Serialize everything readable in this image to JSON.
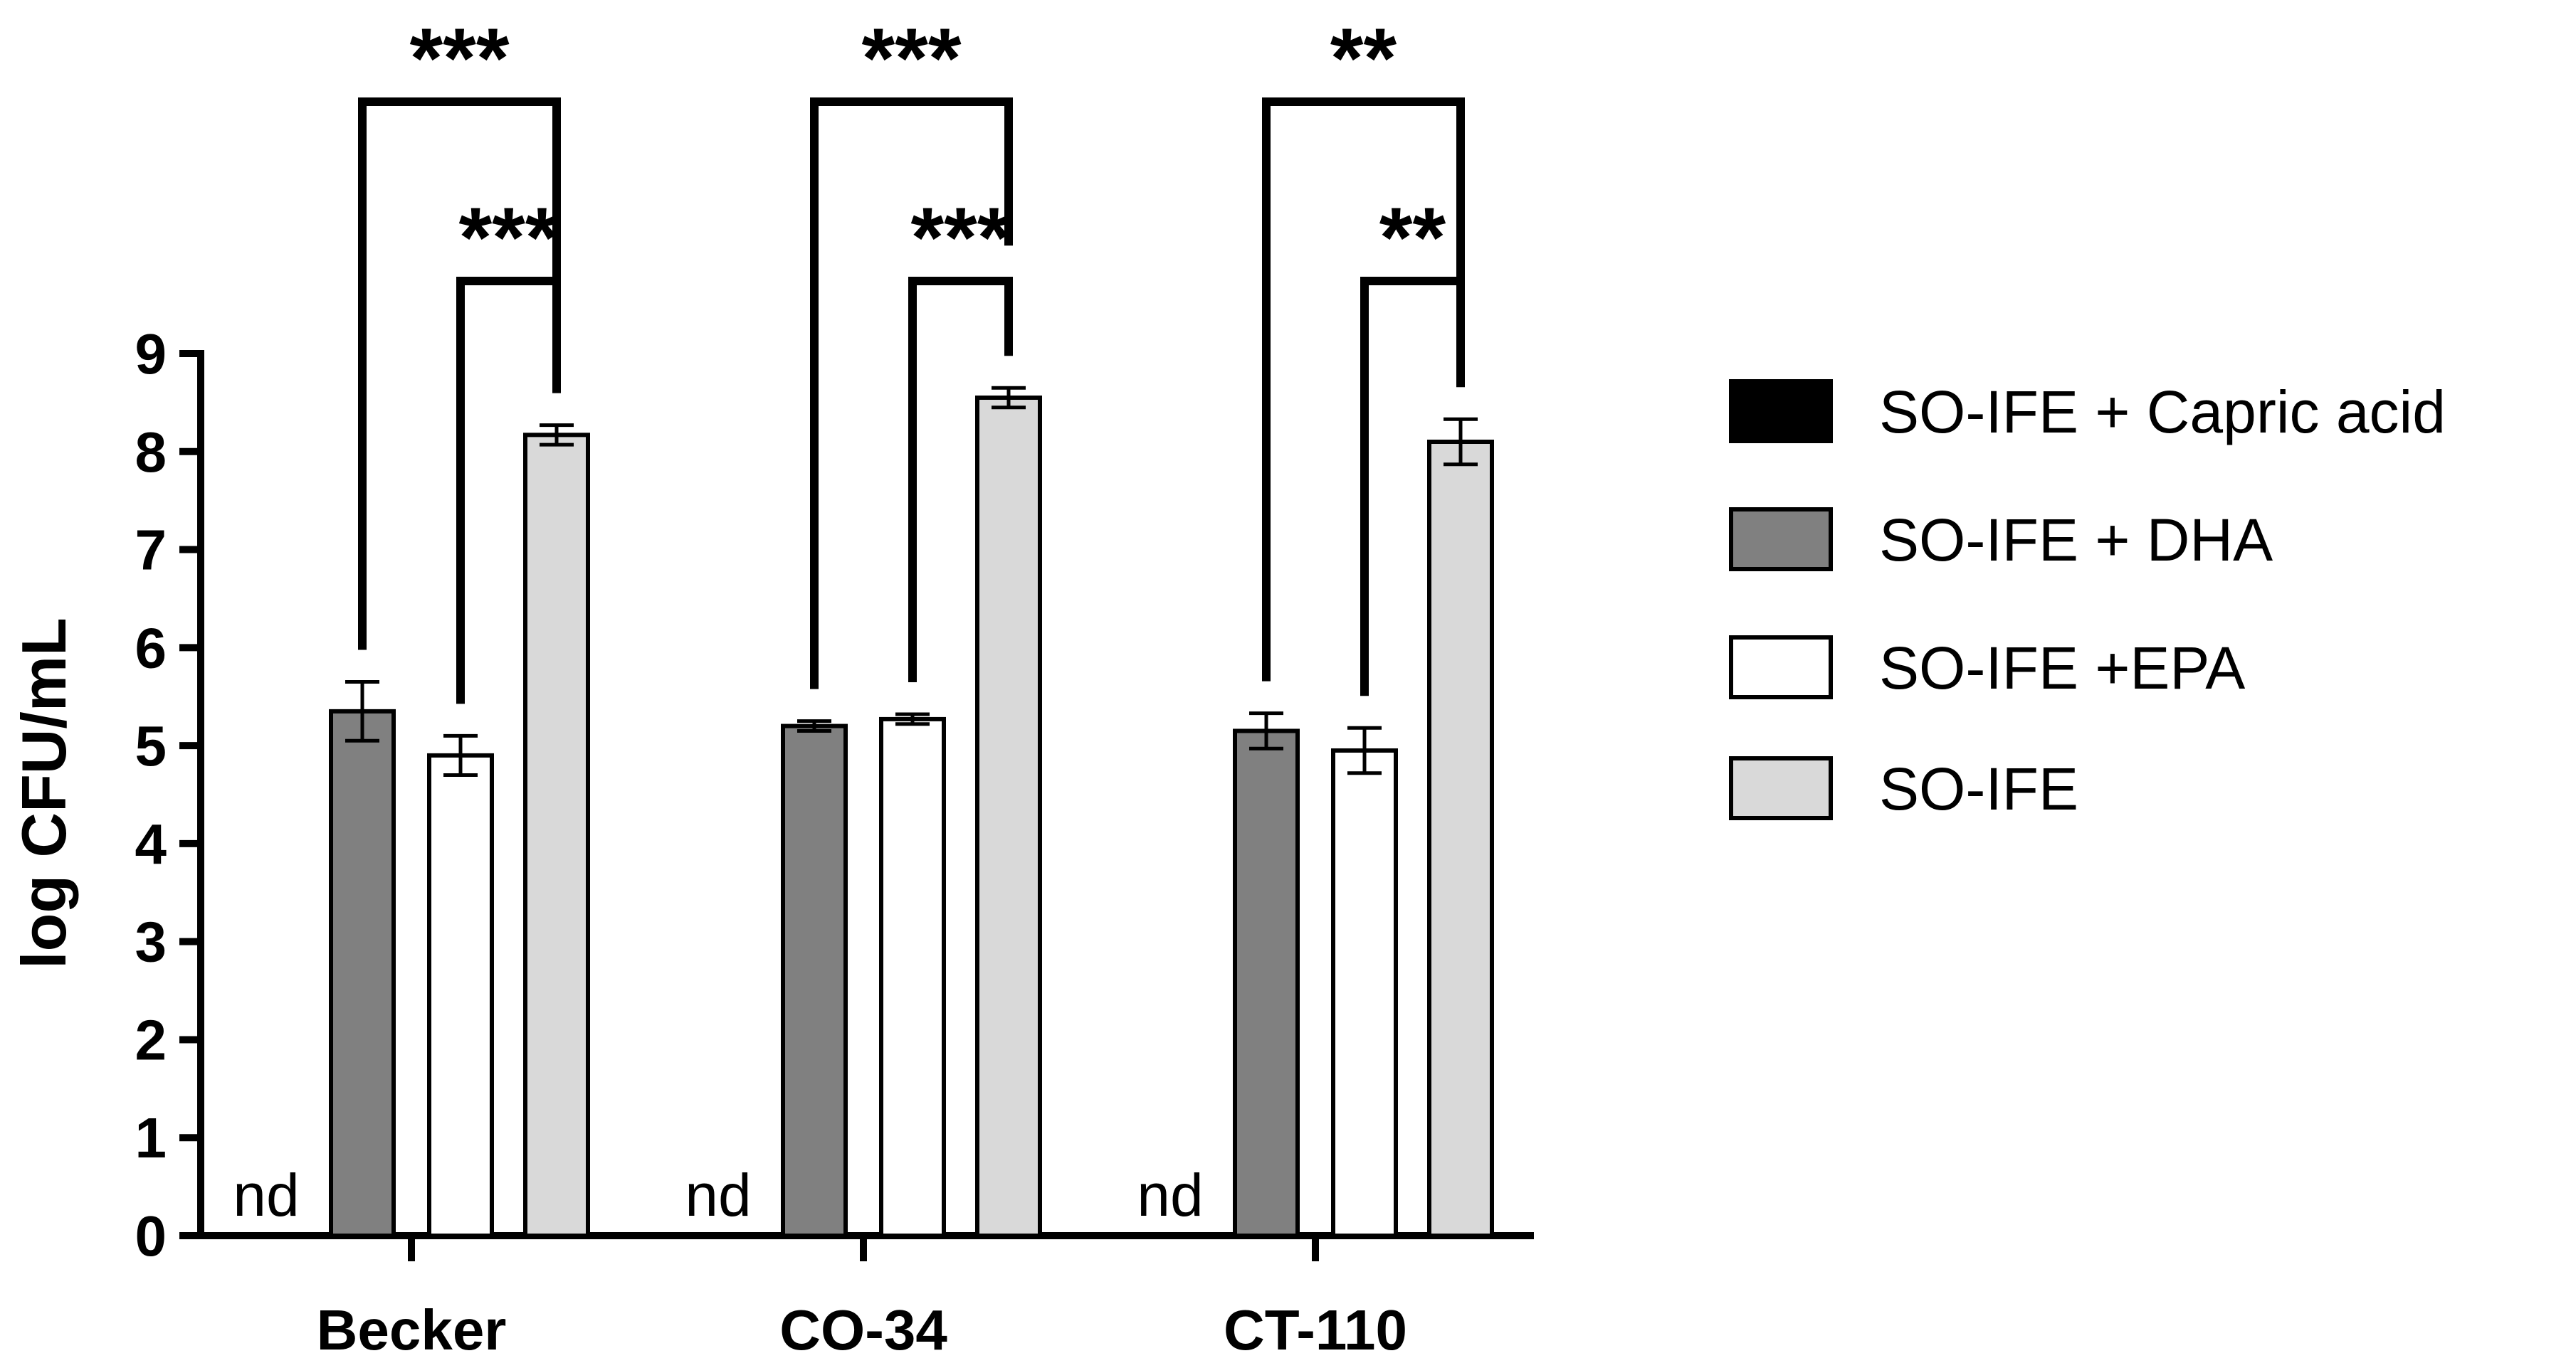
{
  "chart_data": {
    "type": "bar",
    "title": "",
    "xlabel": "",
    "ylabel": "log CFU/mL",
    "ylim": [
      0,
      9
    ],
    "yticks": [
      "0",
      "1",
      "2",
      "3",
      "4",
      "5",
      "6",
      "7",
      "8",
      "9"
    ],
    "categories": [
      "Becker",
      "CO-34",
      "CT-110"
    ],
    "grid": false,
    "legend_position": "right",
    "series": [
      {
        "name": "SO-IFE + Capric acid",
        "color": "#000000",
        "values": [
          null,
          null,
          null
        ],
        "errors": [
          null,
          null,
          null
        ],
        "labels": [
          "nd",
          "nd",
          "nd"
        ]
      },
      {
        "name": "SO-IFE + DHA",
        "color": "#808080",
        "values": [
          5.35,
          5.2,
          5.15
        ],
        "errors": [
          0.3,
          0.05,
          0.18
        ]
      },
      {
        "name": "SO-IFE +EPA",
        "color": "#ffffff",
        "values": [
          4.9,
          5.27,
          4.95
        ],
        "errors": [
          0.2,
          0.05,
          0.23
        ]
      },
      {
        "name": "SO-IFE",
        "color": "#d9d9d9",
        "values": [
          8.17,
          8.55,
          8.1
        ],
        "errors": [
          0.1,
          0.1,
          0.23
        ]
      }
    ],
    "significance": [
      {
        "category": "Becker",
        "from_series": 1,
        "to_series": 3,
        "label": "***"
      },
      {
        "category": "Becker",
        "from_series": 2,
        "to_series": 3,
        "label": "***"
      },
      {
        "category": "CO-34",
        "from_series": 1,
        "to_series": 3,
        "label": "***"
      },
      {
        "category": "CO-34",
        "from_series": 2,
        "to_series": 3,
        "label": "***"
      },
      {
        "category": "CT-110",
        "from_series": 1,
        "to_series": 3,
        "label": "**"
      },
      {
        "category": "CT-110",
        "from_series": 2,
        "to_series": 3,
        "label": "**"
      }
    ]
  }
}
